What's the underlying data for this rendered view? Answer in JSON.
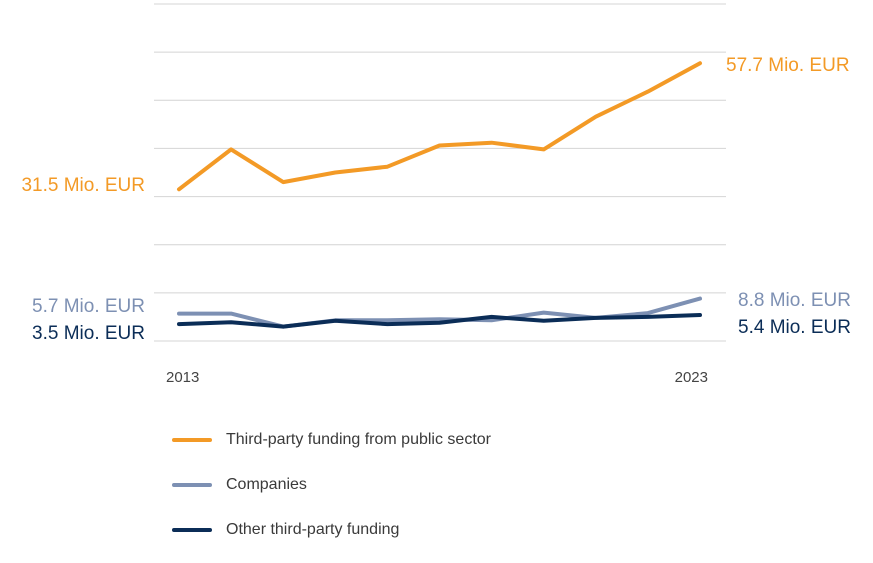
{
  "chart_data": {
    "type": "line",
    "x": [
      2013,
      2014,
      2015,
      2016,
      2017,
      2018,
      2019,
      2020,
      2021,
      2022,
      2023
    ],
    "x_tick_labels": [
      "2013",
      "2023"
    ],
    "ylim": [
      0,
      70
    ],
    "grid": true,
    "legend_position": "bottom",
    "series": [
      {
        "name": "Third-party funding from public sector",
        "color": "#f39a26",
        "values": [
          31.5,
          39.8,
          33.0,
          35.0,
          36.2,
          40.6,
          41.2,
          39.8,
          46.6,
          51.8,
          57.7
        ],
        "start_label": "31.5 Mio. EUR",
        "end_label": "57.7 Mio. EUR"
      },
      {
        "name": "Companies",
        "color": "#7d90b3",
        "values": [
          5.7,
          5.7,
          3.0,
          4.3,
          4.3,
          4.5,
          4.3,
          5.9,
          4.8,
          5.8,
          8.8
        ],
        "start_label": "5.7 Mio. EUR",
        "end_label": "8.8 Mio. EUR"
      },
      {
        "name": "Other third-party funding",
        "color": "#0b2d57",
        "values": [
          3.5,
          3.9,
          3.0,
          4.2,
          3.5,
          3.8,
          5.0,
          4.2,
          4.8,
          5.0,
          5.4
        ],
        "start_label": "3.5 Mio. EUR",
        "end_label": "5.4 Mio. EUR"
      }
    ]
  }
}
